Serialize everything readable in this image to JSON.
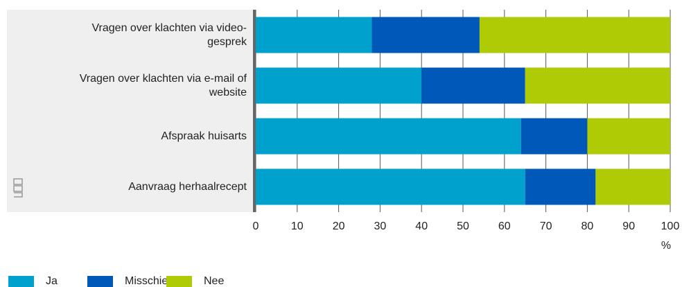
{
  "chart_data": {
    "type": "stacked-barh",
    "categories": [
      "Vragen over klachten via video-gesprek",
      "Vragen over klachten via e-mail of website",
      "Afspraak huisarts",
      "Aanvraag herhaalrecept"
    ],
    "series": [
      {
        "name": "Ja",
        "color": "#00a1cd",
        "values": [
          28,
          40,
          64,
          65
        ]
      },
      {
        "name": "Misschien",
        "color": "#0058b8",
        "values": [
          26,
          25,
          16,
          17
        ]
      },
      {
        "name": "Nee",
        "color": "#afcb05",
        "values": [
          46,
          35,
          20,
          18
        ]
      }
    ],
    "xlim": [
      0,
      100
    ],
    "xticks": [
      0,
      10,
      20,
      30,
      40,
      50,
      60,
      70,
      80,
      90,
      100
    ],
    "xlabel": "%",
    "grid": true
  }
}
